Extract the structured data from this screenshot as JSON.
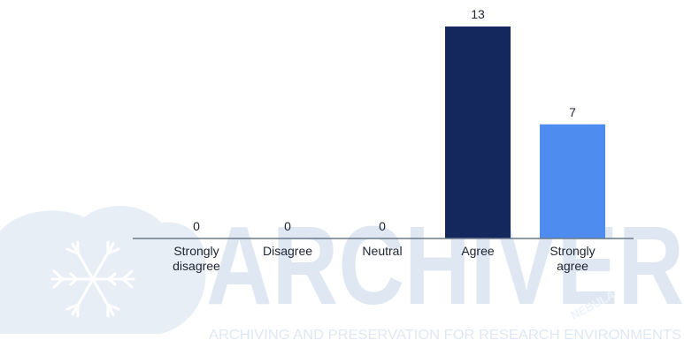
{
  "chart_data": {
    "type": "bar",
    "categories": [
      [
        "Strongly",
        "disagree"
      ],
      [
        "Disagree"
      ],
      [
        "Neutral"
      ],
      [
        "Agree"
      ],
      [
        "Strongly",
        "agree"
      ]
    ],
    "values": [
      0,
      0,
      0,
      13,
      7
    ],
    "value_labels": [
      "0",
      "0",
      "0",
      "13",
      "7"
    ],
    "colors": [
      "#15285e",
      "#15285e",
      "#15285e",
      "#15285e",
      "#4f8cf0"
    ],
    "title": "",
    "xlabel": "",
    "ylabel": "",
    "ylim": [
      0,
      13
    ],
    "grid": false,
    "legend": "none"
  },
  "watermark": {
    "wordmark": "ARCHIVER",
    "tagline": "ARCHIVING AND PRESERVATION FOR RESEARCH ENVIRONMENTS",
    "badge": "NEBULA",
    "colors": {
      "cloud": "#e7eef6",
      "text": "#dfe8f2",
      "snowflake": "#ffffff"
    }
  }
}
